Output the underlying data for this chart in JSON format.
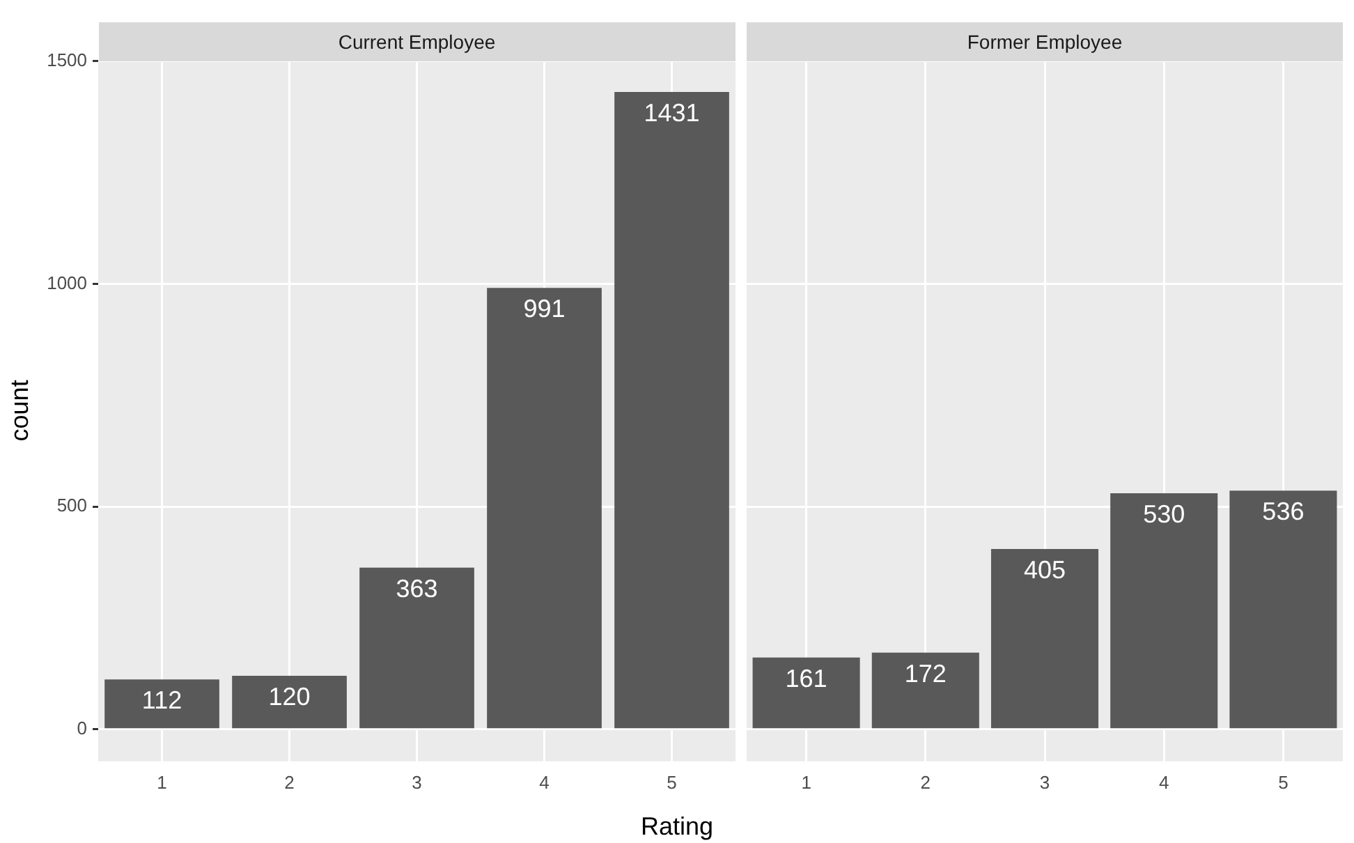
{
  "chart_data": [
    {
      "type": "bar",
      "title": "Current Employee",
      "ylabel": "count",
      "xlabel": "Rating",
      "categories": [
        "1",
        "2",
        "3",
        "4",
        "5"
      ],
      "values": [
        112,
        120,
        363,
        991,
        1431
      ],
      "color": "#595959",
      "data_labels": true,
      "ylim": [
        -72,
        1503
      ],
      "yticks": [
        0,
        500,
        1000,
        1500
      ],
      "grid": true,
      "legend": false
    },
    {
      "type": "bar",
      "title": "Former Employee",
      "categories": [
        "1",
        "2",
        "3",
        "4",
        "5"
      ],
      "values": [
        161,
        172,
        405,
        530,
        536
      ],
      "color": "#595959",
      "data_labels": true,
      "ylim": [
        -72,
        1503
      ],
      "yticks": [
        0,
        500,
        1000,
        1500
      ],
      "grid": true,
      "legend": false,
      "tick_labels": "x"
    }
  ]
}
